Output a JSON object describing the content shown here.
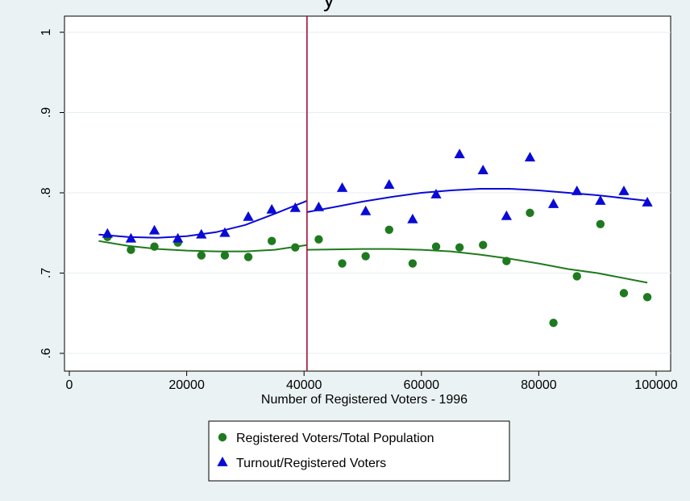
{
  "chart_data": {
    "type": "scatter",
    "title": "y",
    "xlabel": "Number of Registered Voters - 1996",
    "ylabel": "",
    "xlim": [
      0,
      100000
    ],
    "ylim": [
      0.6,
      1.0
    ],
    "x_ticks": [
      "0",
      "20000",
      "40000",
      "60000",
      "80000",
      "100000"
    ],
    "y_ticks": [
      ".6",
      ".7",
      ".8",
      ".9",
      "1"
    ],
    "x_tick_values": [
      0,
      20000,
      40000,
      60000,
      80000,
      100000
    ],
    "y_tick_values": [
      0.6,
      0.7,
      0.8,
      0.9,
      1.0
    ],
    "grid": true,
    "legend_position": "bottom",
    "threshold_x": 40500,
    "threshold_color": "#a0103a",
    "series": [
      {
        "name": "Registered Voters/Total Population",
        "marker": "circle",
        "color": "#1f7a1f",
        "points": [
          [
            6500,
            0.745
          ],
          [
            10500,
            0.729
          ],
          [
            14500,
            0.733
          ],
          [
            18500,
            0.738
          ],
          [
            22500,
            0.722
          ],
          [
            26500,
            0.722
          ],
          [
            30500,
            0.72
          ],
          [
            34500,
            0.74
          ],
          [
            38500,
            0.732
          ],
          [
            42500,
            0.742
          ],
          [
            46500,
            0.712
          ],
          [
            50500,
            0.721
          ],
          [
            54500,
            0.754
          ],
          [
            58500,
            0.712
          ],
          [
            62500,
            0.733
          ],
          [
            66500,
            0.732
          ],
          [
            70500,
            0.735
          ],
          [
            74500,
            0.715
          ],
          [
            78500,
            0.775
          ],
          [
            82500,
            0.638
          ],
          [
            86500,
            0.696
          ],
          [
            90500,
            0.761
          ],
          [
            94500,
            0.675
          ],
          [
            98500,
            0.67
          ]
        ],
        "fit_left": [
          [
            5000,
            0.74
          ],
          [
            10000,
            0.734
          ],
          [
            15000,
            0.73
          ],
          [
            20000,
            0.728
          ],
          [
            25000,
            0.727
          ],
          [
            30000,
            0.727
          ],
          [
            35000,
            0.729
          ],
          [
            40500,
            0.735
          ]
        ],
        "fit_right": [
          [
            40500,
            0.729
          ],
          [
            50000,
            0.73
          ],
          [
            55000,
            0.73
          ],
          [
            60000,
            0.729
          ],
          [
            65000,
            0.727
          ],
          [
            70000,
            0.723
          ],
          [
            75000,
            0.718
          ],
          [
            80000,
            0.712
          ],
          [
            85000,
            0.705
          ],
          [
            90000,
            0.7
          ],
          [
            98500,
            0.688
          ]
        ]
      },
      {
        "name": "Turnout/Registered Voters",
        "marker": "triangle",
        "color": "#0a0ad6",
        "points": [
          [
            6500,
            0.749
          ],
          [
            10500,
            0.743
          ],
          [
            14500,
            0.753
          ],
          [
            18500,
            0.743
          ],
          [
            22500,
            0.748
          ],
          [
            26500,
            0.75
          ],
          [
            30500,
            0.77
          ],
          [
            34500,
            0.779
          ],
          [
            38500,
            0.781
          ],
          [
            42500,
            0.782
          ],
          [
            46500,
            0.806
          ],
          [
            50500,
            0.777
          ],
          [
            54500,
            0.81
          ],
          [
            58500,
            0.767
          ],
          [
            62500,
            0.798
          ],
          [
            66500,
            0.848
          ],
          [
            70500,
            0.828
          ],
          [
            74500,
            0.771
          ],
          [
            78500,
            0.844
          ],
          [
            82500,
            0.786
          ],
          [
            86500,
            0.802
          ],
          [
            90500,
            0.79
          ],
          [
            94500,
            0.802
          ],
          [
            98500,
            0.788
          ]
        ],
        "fit_left": [
          [
            5000,
            0.748
          ],
          [
            10000,
            0.745
          ],
          [
            15000,
            0.744
          ],
          [
            20000,
            0.746
          ],
          [
            25000,
            0.751
          ],
          [
            30000,
            0.76
          ],
          [
            35000,
            0.774
          ],
          [
            40500,
            0.79
          ]
        ],
        "fit_right": [
          [
            40500,
            0.776
          ],
          [
            45000,
            0.782
          ],
          [
            50000,
            0.789
          ],
          [
            55000,
            0.795
          ],
          [
            60000,
            0.8
          ],
          [
            65000,
            0.803
          ],
          [
            70000,
            0.805
          ],
          [
            75000,
            0.805
          ],
          [
            80000,
            0.803
          ],
          [
            85000,
            0.8
          ],
          [
            90000,
            0.797
          ],
          [
            98500,
            0.79
          ]
        ]
      }
    ]
  }
}
